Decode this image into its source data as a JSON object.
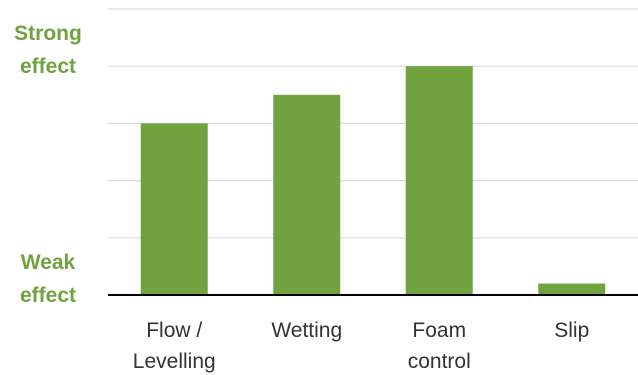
{
  "chart_data": {
    "type": "bar",
    "categories": [
      [
        "Flow /",
        "Levelling"
      ],
      [
        "Wetting"
      ],
      [
        "Foam",
        "control"
      ],
      [
        "Slip"
      ]
    ],
    "values": [
      3,
      3.5,
      4,
      0.2
    ],
    "ylim": [
      0,
      5
    ],
    "grid": true,
    "y_tick_labels": [
      {
        "value": 4,
        "lines": [
          "Strong",
          "effect"
        ]
      },
      {
        "value": 0,
        "lines": [
          "Weak",
          "effect"
        ]
      }
    ],
    "colors": {
      "bar": "#70a33f",
      "label": "#70a33f",
      "grid": "#d9d9d9",
      "axis": "#000000"
    }
  }
}
